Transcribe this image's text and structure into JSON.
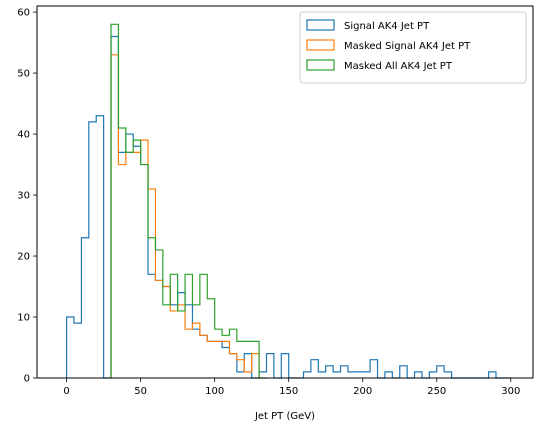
{
  "chart_data": {
    "type": "histogram",
    "xlabel": "Jet PT (GeV)",
    "ylabel": "",
    "xlim": [
      -20,
      315
    ],
    "ylim": [
      0,
      61
    ],
    "xticks": [
      0,
      50,
      100,
      150,
      200,
      250,
      300
    ],
    "yticks": [
      0,
      10,
      20,
      30,
      40,
      50,
      60
    ],
    "grid": false,
    "legend_position": "top-right",
    "bin_edges": [
      0,
      5,
      10,
      15,
      20,
      25,
      30,
      35,
      40,
      45,
      50,
      55,
      60,
      65,
      70,
      75,
      80,
      85,
      90,
      95,
      100,
      105,
      110,
      115,
      120,
      125,
      130,
      135,
      140,
      145,
      150,
      155,
      160,
      165,
      170,
      175,
      180,
      185,
      190,
      195,
      200,
      205,
      210,
      215,
      220,
      225,
      230,
      235,
      240,
      245,
      250,
      255,
      260,
      265,
      270,
      275,
      280,
      285,
      290,
      295,
      300
    ],
    "series": [
      {
        "name": "Signal AK4 Jet PT",
        "color": "#1f77b4",
        "counts": [
          10,
          9,
          23,
          42,
          43,
          0,
          56,
          37,
          40,
          38,
          35,
          17,
          16,
          15,
          12,
          14,
          12,
          8,
          7,
          6,
          6,
          5,
          4,
          1,
          4,
          0,
          1,
          4,
          0,
          4,
          0,
          0,
          1,
          3,
          1,
          2,
          1,
          2,
          1,
          1,
          1,
          3,
          0,
          1,
          0,
          2,
          0,
          1,
          0,
          1,
          2,
          1,
          0,
          0,
          0,
          0,
          0,
          1,
          0,
          0
        ],
        "start_bin": 0
      },
      {
        "name": "Masked Signal AK4 Jet PT",
        "color": "#ff7f0e",
        "counts": [
          53,
          35,
          37,
          37,
          39,
          31,
          16,
          15,
          11,
          12,
          8,
          9,
          7,
          6,
          6,
          6,
          4,
          3,
          1,
          4
        ],
        "start_bin": 6
      },
      {
        "name": "Masked All AK4 Jet PT",
        "color": "#2ca02c",
        "counts": [
          58,
          41,
          37,
          39,
          35,
          23,
          21,
          12,
          17,
          11,
          17,
          12,
          17,
          13,
          8,
          7,
          8,
          6,
          6,
          6,
          0
        ],
        "start_bin": 6
      }
    ]
  }
}
